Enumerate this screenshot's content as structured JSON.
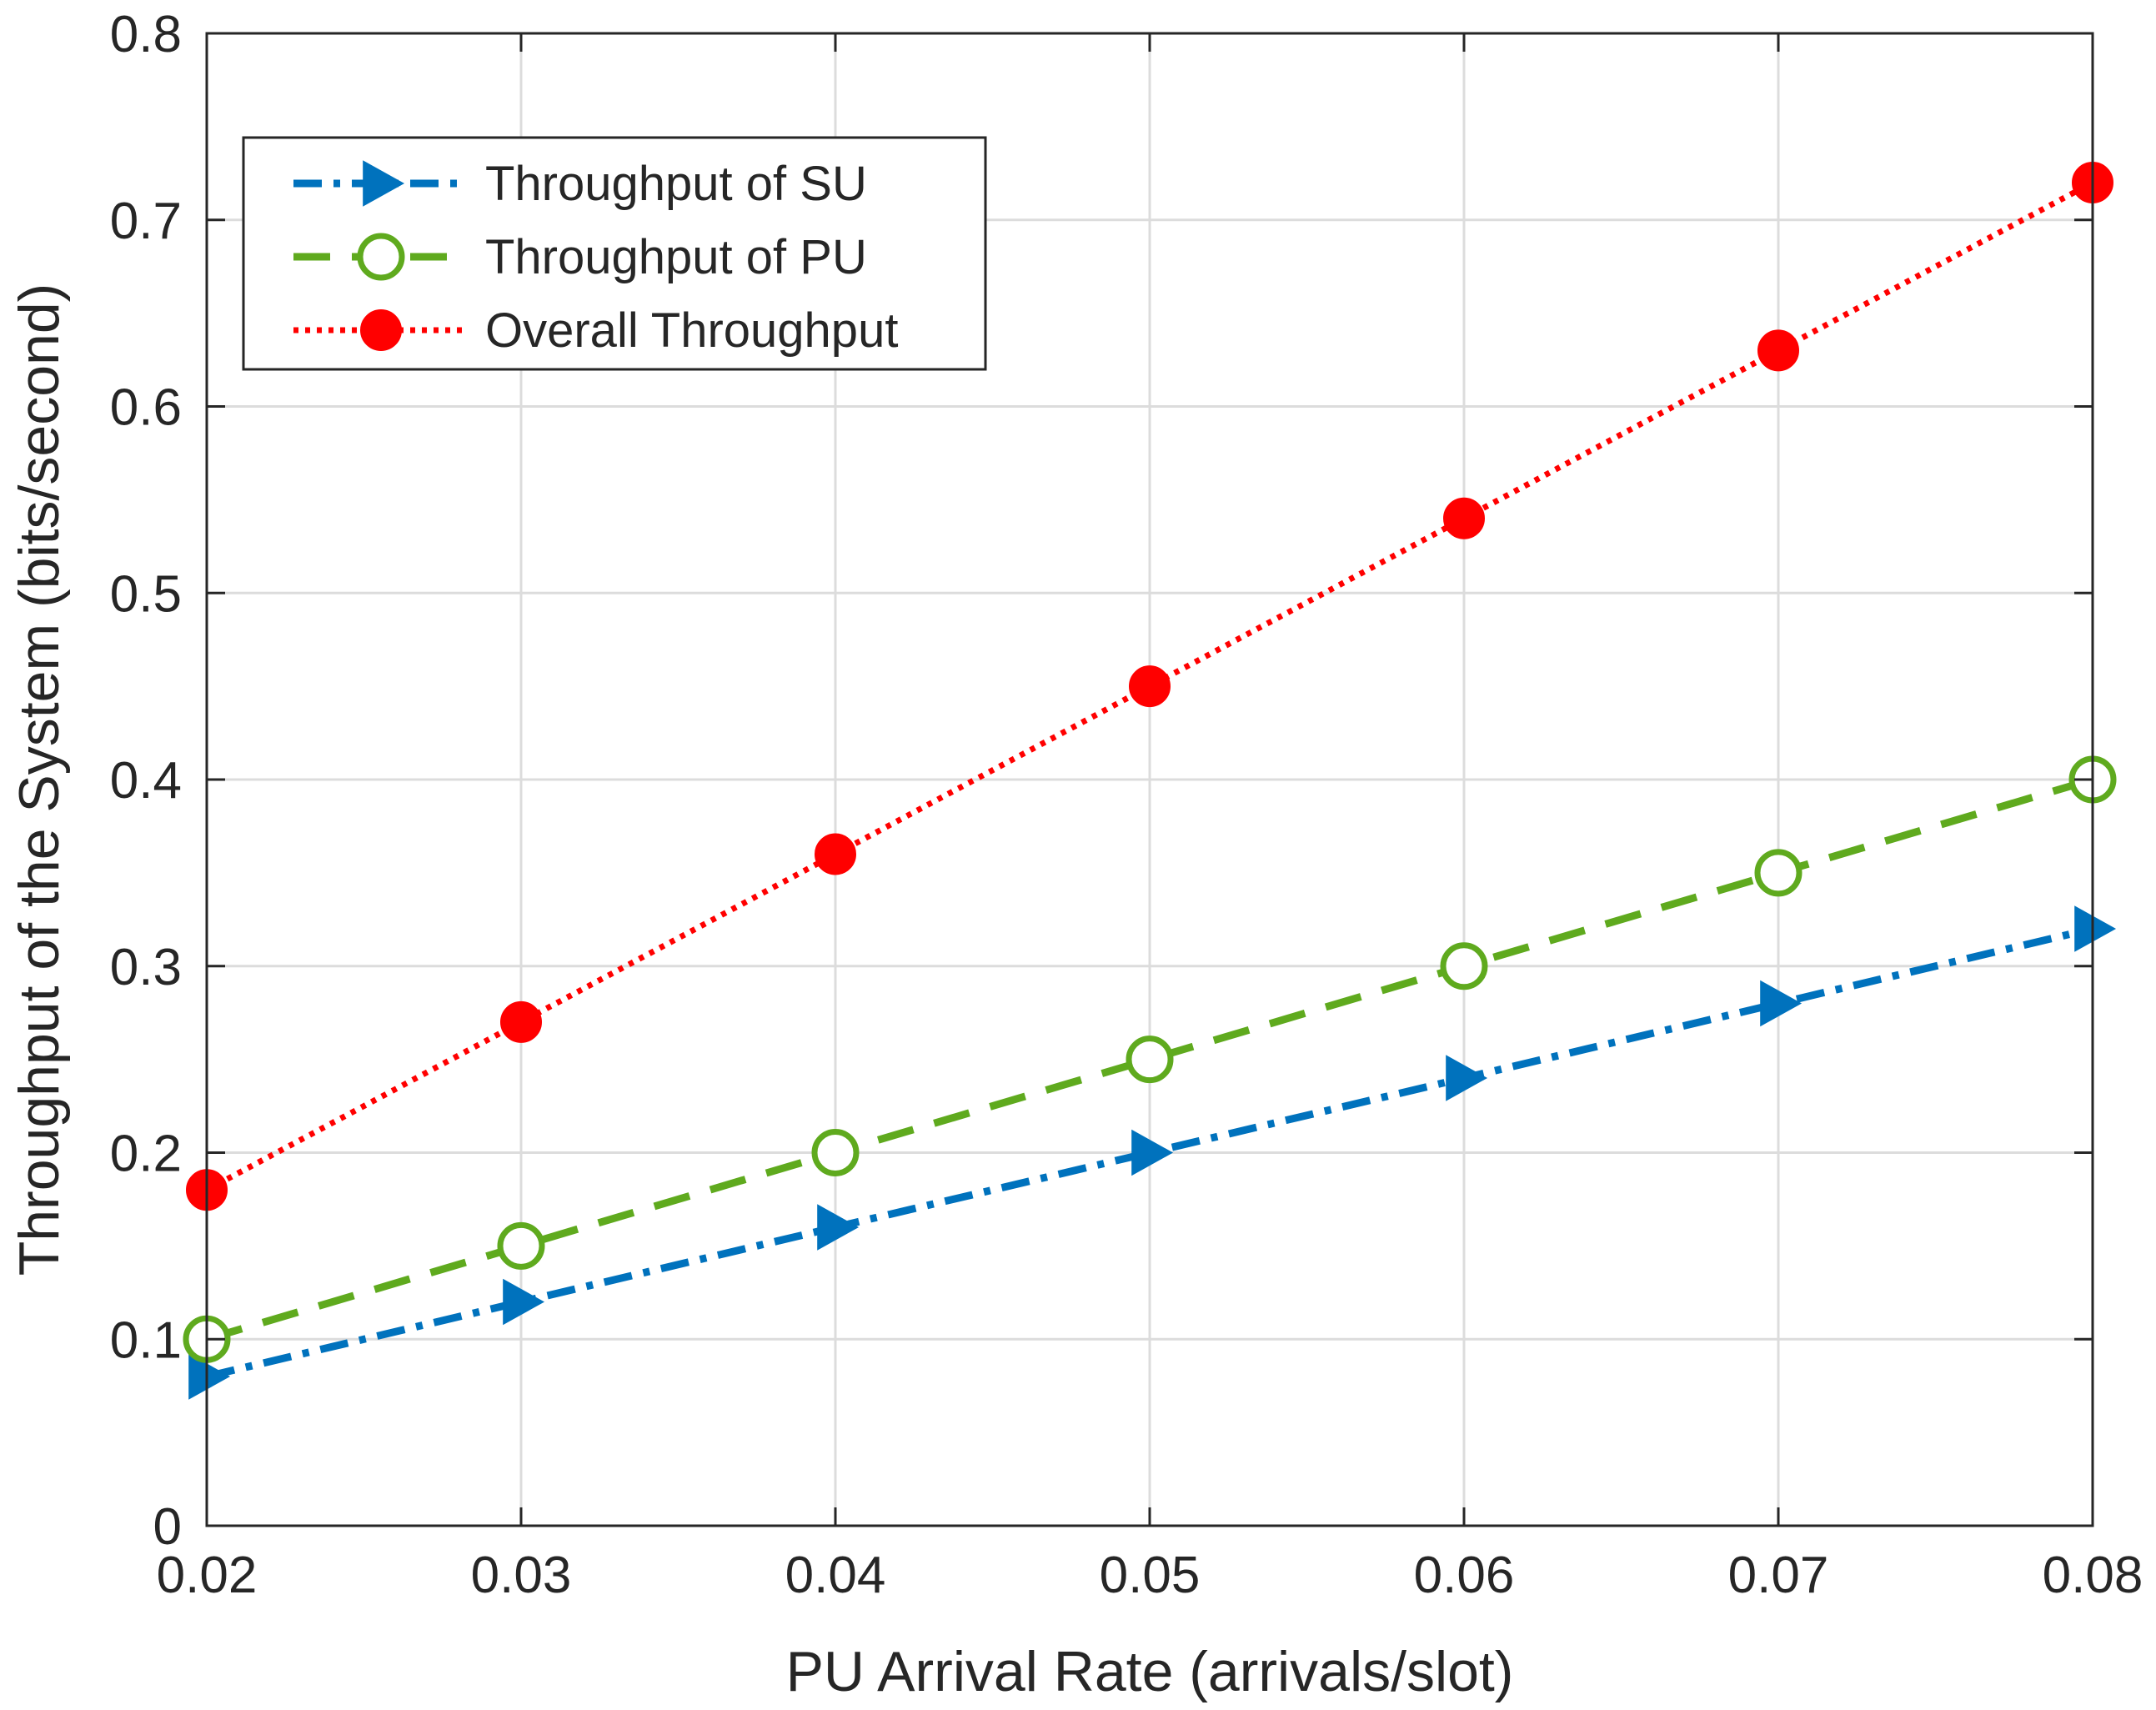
{
  "chart_data": {
    "type": "line",
    "title": "",
    "xlabel": "PU Arrival Rate (arrivals/slot)",
    "ylabel": "Throughput of the System (bits/second)",
    "xlim": [
      0.02,
      0.08
    ],
    "ylim": [
      0,
      0.8
    ],
    "grid": true,
    "legend_position": "top-left",
    "x": [
      0.02,
      0.03,
      0.04,
      0.05,
      0.06,
      0.07,
      0.08
    ],
    "x_tick_labels": [
      "0.02",
      "0.03",
      "0.04",
      "0.05",
      "0.06",
      "0.07",
      "0.08"
    ],
    "y_ticks": [
      0,
      0.1,
      0.2,
      0.3,
      0.4,
      0.5,
      0.6,
      0.7,
      0.8
    ],
    "y_tick_labels": [
      "0",
      "0.1",
      "0.2",
      "0.3",
      "0.4",
      "0.5",
      "0.6",
      "0.7",
      "0.8"
    ],
    "series": [
      {
        "name": "Throughput of SU",
        "color": "#0072BD",
        "line_style": "dash-dot",
        "marker": "triangle-right",
        "values": [
          0.08,
          0.12,
          0.16,
          0.2,
          0.24,
          0.28,
          0.32
        ]
      },
      {
        "name": "Throughput of PU",
        "color": "#5FAA1E",
        "line_style": "dashed",
        "marker": "open-circle",
        "values": [
          0.1,
          0.15,
          0.2,
          0.25,
          0.3,
          0.35,
          0.4
        ]
      },
      {
        "name": "Overall Throughput",
        "color": "#FF0000",
        "line_style": "dotted",
        "marker": "filled-circle",
        "values": [
          0.18,
          0.27,
          0.36,
          0.45,
          0.54,
          0.63,
          0.72
        ]
      }
    ]
  }
}
